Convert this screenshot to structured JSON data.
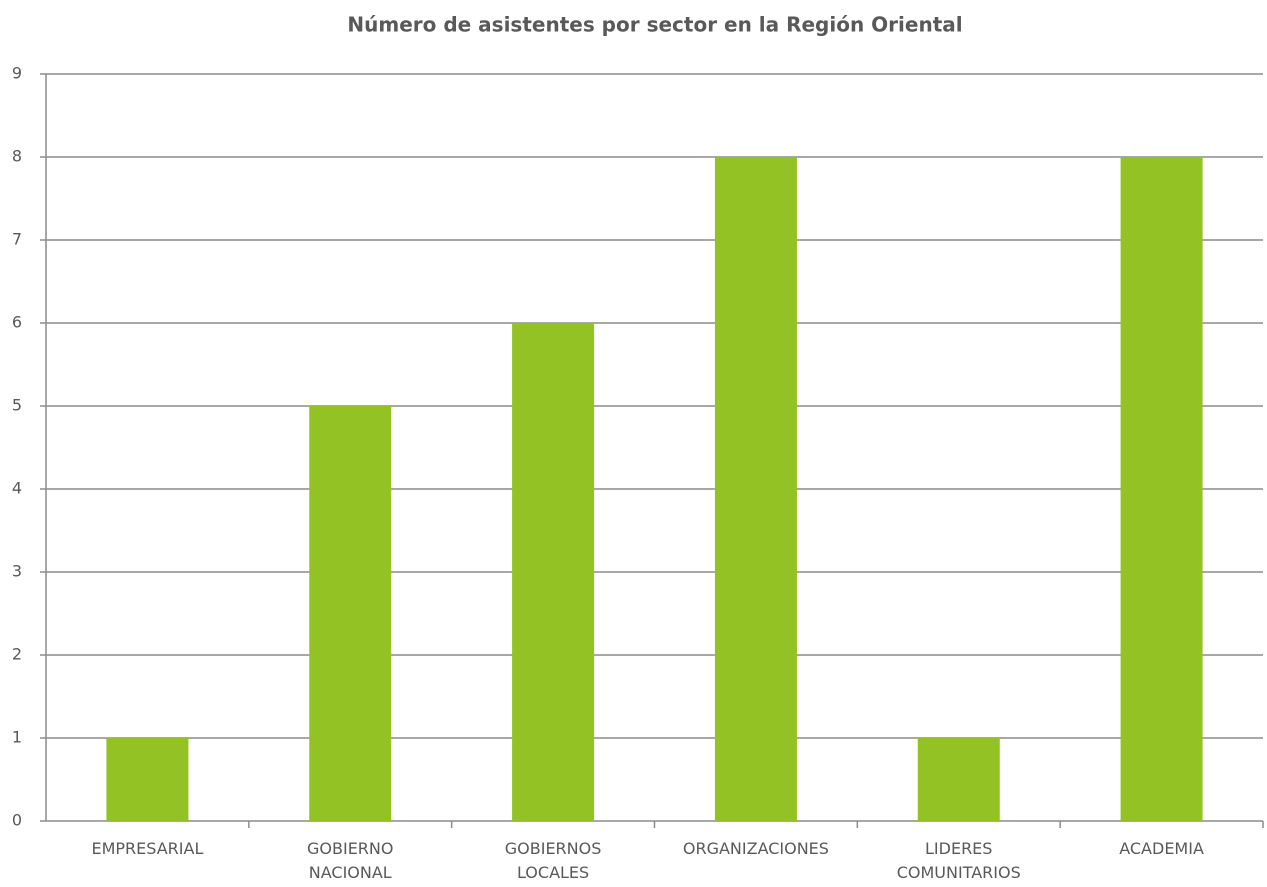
{
  "chart_data": {
    "type": "bar",
    "title": "Número de asistentes por sector en la Región Oriental",
    "categories": [
      "EMPRESARIAL",
      "GOBIERNO NACIONAL",
      "GOBIERNOS LOCALES",
      "ORGANIZACIONES",
      "LIDERES COMUNITARIOS",
      "ACADEMIA"
    ],
    "values": [
      1,
      5,
      6,
      8,
      1,
      8
    ],
    "color": "#93c225",
    "ylim": [
      0,
      9
    ],
    "yticks": [
      0,
      1,
      2,
      3,
      4,
      5,
      6,
      7,
      8,
      9
    ],
    "grid": true
  }
}
